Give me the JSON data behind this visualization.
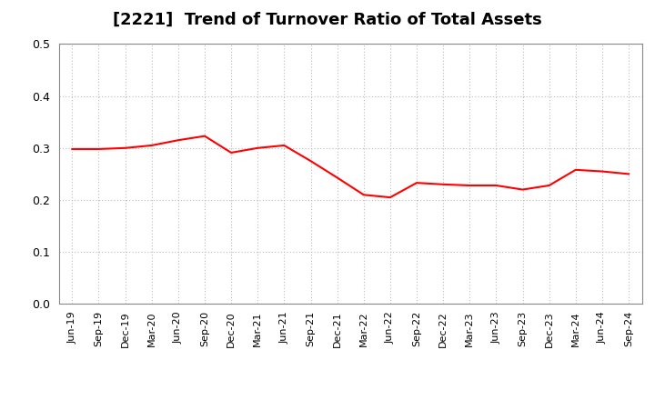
{
  "title": "[2221]  Trend of Turnover Ratio of Total Assets",
  "title_fontsize": 13,
  "line_color": "#FF0000",
  "line_width": 1.5,
  "background_color": "#FFFFFF",
  "grid_color": "#BBBBBB",
  "ylim": [
    0.0,
    0.5
  ],
  "yticks": [
    0.0,
    0.1,
    0.2,
    0.3,
    0.4,
    0.5
  ],
  "labels": [
    "Jun-19",
    "Sep-19",
    "Dec-19",
    "Mar-20",
    "Jun-20",
    "Sep-20",
    "Dec-20",
    "Mar-21",
    "Jun-21",
    "Sep-21",
    "Dec-21",
    "Mar-22",
    "Jun-22",
    "Sep-22",
    "Dec-22",
    "Mar-23",
    "Jun-23",
    "Sep-23",
    "Dec-23",
    "Mar-24",
    "Jun-24",
    "Sep-24"
  ],
  "values": [
    0.298,
    0.298,
    0.3,
    0.305,
    0.315,
    0.323,
    0.291,
    0.3,
    0.305,
    0.275,
    0.243,
    0.21,
    0.205,
    0.233,
    0.23,
    0.228,
    0.228,
    0.22,
    0.228,
    0.258,
    0.255,
    0.25
  ]
}
